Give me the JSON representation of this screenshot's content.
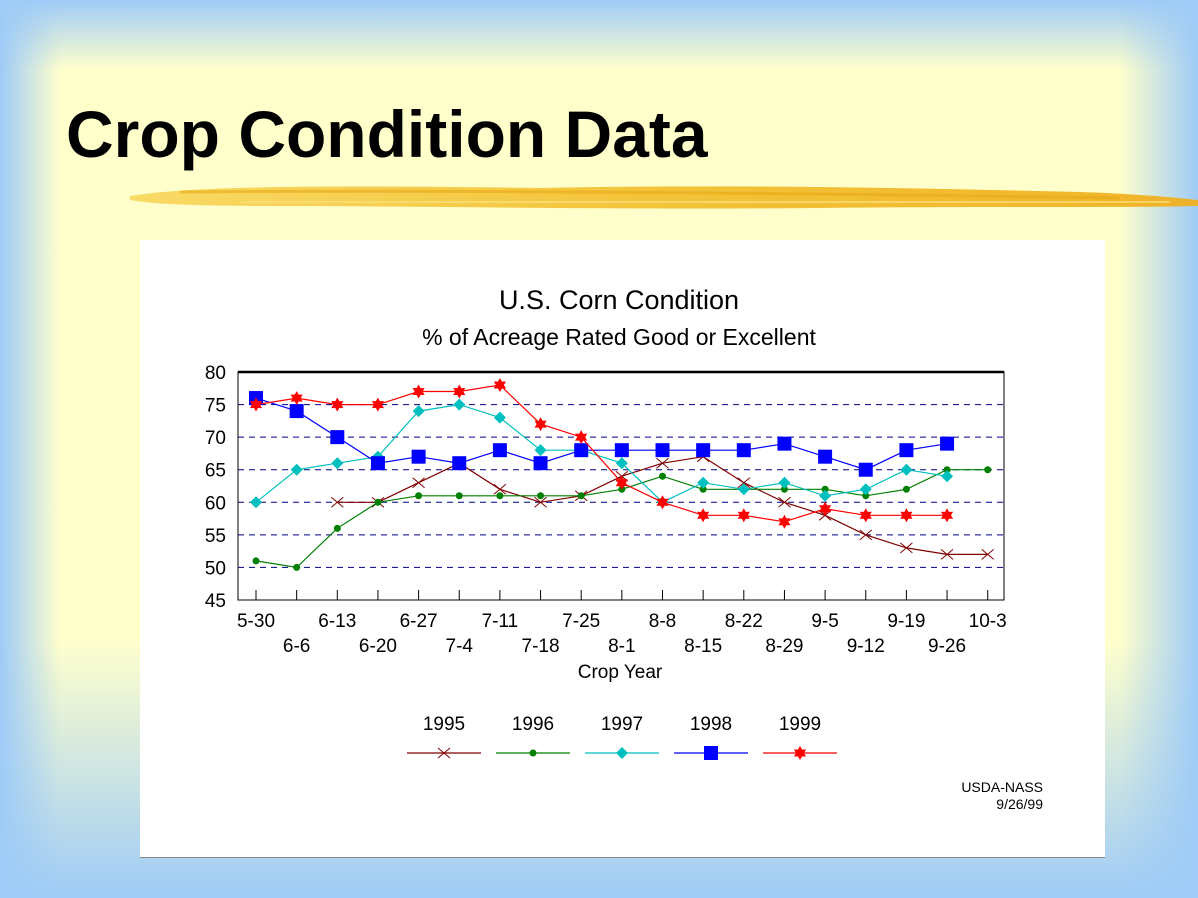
{
  "slide": {
    "title": "Crop Condition Data"
  },
  "source": {
    "line1": "USDA-NASS",
    "line2": "9/26/99"
  },
  "chart_data": {
    "type": "line",
    "title": "U.S. Corn Condition",
    "subtitle": "% of Acreage Rated Good or Excellent",
    "xlabel": "Crop Year",
    "ylabel": "",
    "ylim": [
      45,
      80
    ],
    "yticks": [
      45,
      50,
      55,
      60,
      65,
      70,
      75,
      80
    ],
    "grid": "horizontal dashed",
    "legend_position": "bottom",
    "categories": [
      "5-30",
      "6-6",
      "6-13",
      "6-20",
      "6-27",
      "7-4",
      "7-11",
      "7-18",
      "7-25",
      "8-1",
      "8-8",
      "8-15",
      "8-22",
      "8-29",
      "9-5",
      "9-12",
      "9-19",
      "9-26",
      "10-3"
    ],
    "series": [
      {
        "name": "1995",
        "color": "#800000",
        "marker": "x",
        "values": [
          null,
          null,
          60,
          60,
          63,
          66,
          62,
          60,
          61,
          64,
          66,
          67,
          63,
          60,
          58,
          55,
          53,
          52,
          52
        ]
      },
      {
        "name": "1996",
        "color": "#008000",
        "marker": "dot",
        "values": [
          51,
          50,
          56,
          60,
          61,
          61,
          61,
          61,
          61,
          62,
          64,
          62,
          62,
          62,
          62,
          61,
          62,
          65,
          65
        ]
      },
      {
        "name": "1997",
        "color": "#00bfbf",
        "marker": "diamond",
        "values": [
          60,
          65,
          66,
          67,
          74,
          75,
          73,
          68,
          68,
          66,
          60,
          63,
          62,
          63,
          61,
          62,
          65,
          64,
          null
        ]
      },
      {
        "name": "1998",
        "color": "#0000ff",
        "marker": "square",
        "values": [
          76,
          74,
          70,
          66,
          67,
          66,
          68,
          66,
          68,
          68,
          68,
          68,
          68,
          69,
          67,
          65,
          68,
          69,
          null
        ]
      },
      {
        "name": "1999",
        "color": "#ff0000",
        "marker": "star",
        "values": [
          75,
          76,
          75,
          75,
          77,
          77,
          78,
          72,
          70,
          63,
          60,
          58,
          58,
          57,
          59,
          58,
          58,
          58,
          null
        ]
      }
    ]
  }
}
